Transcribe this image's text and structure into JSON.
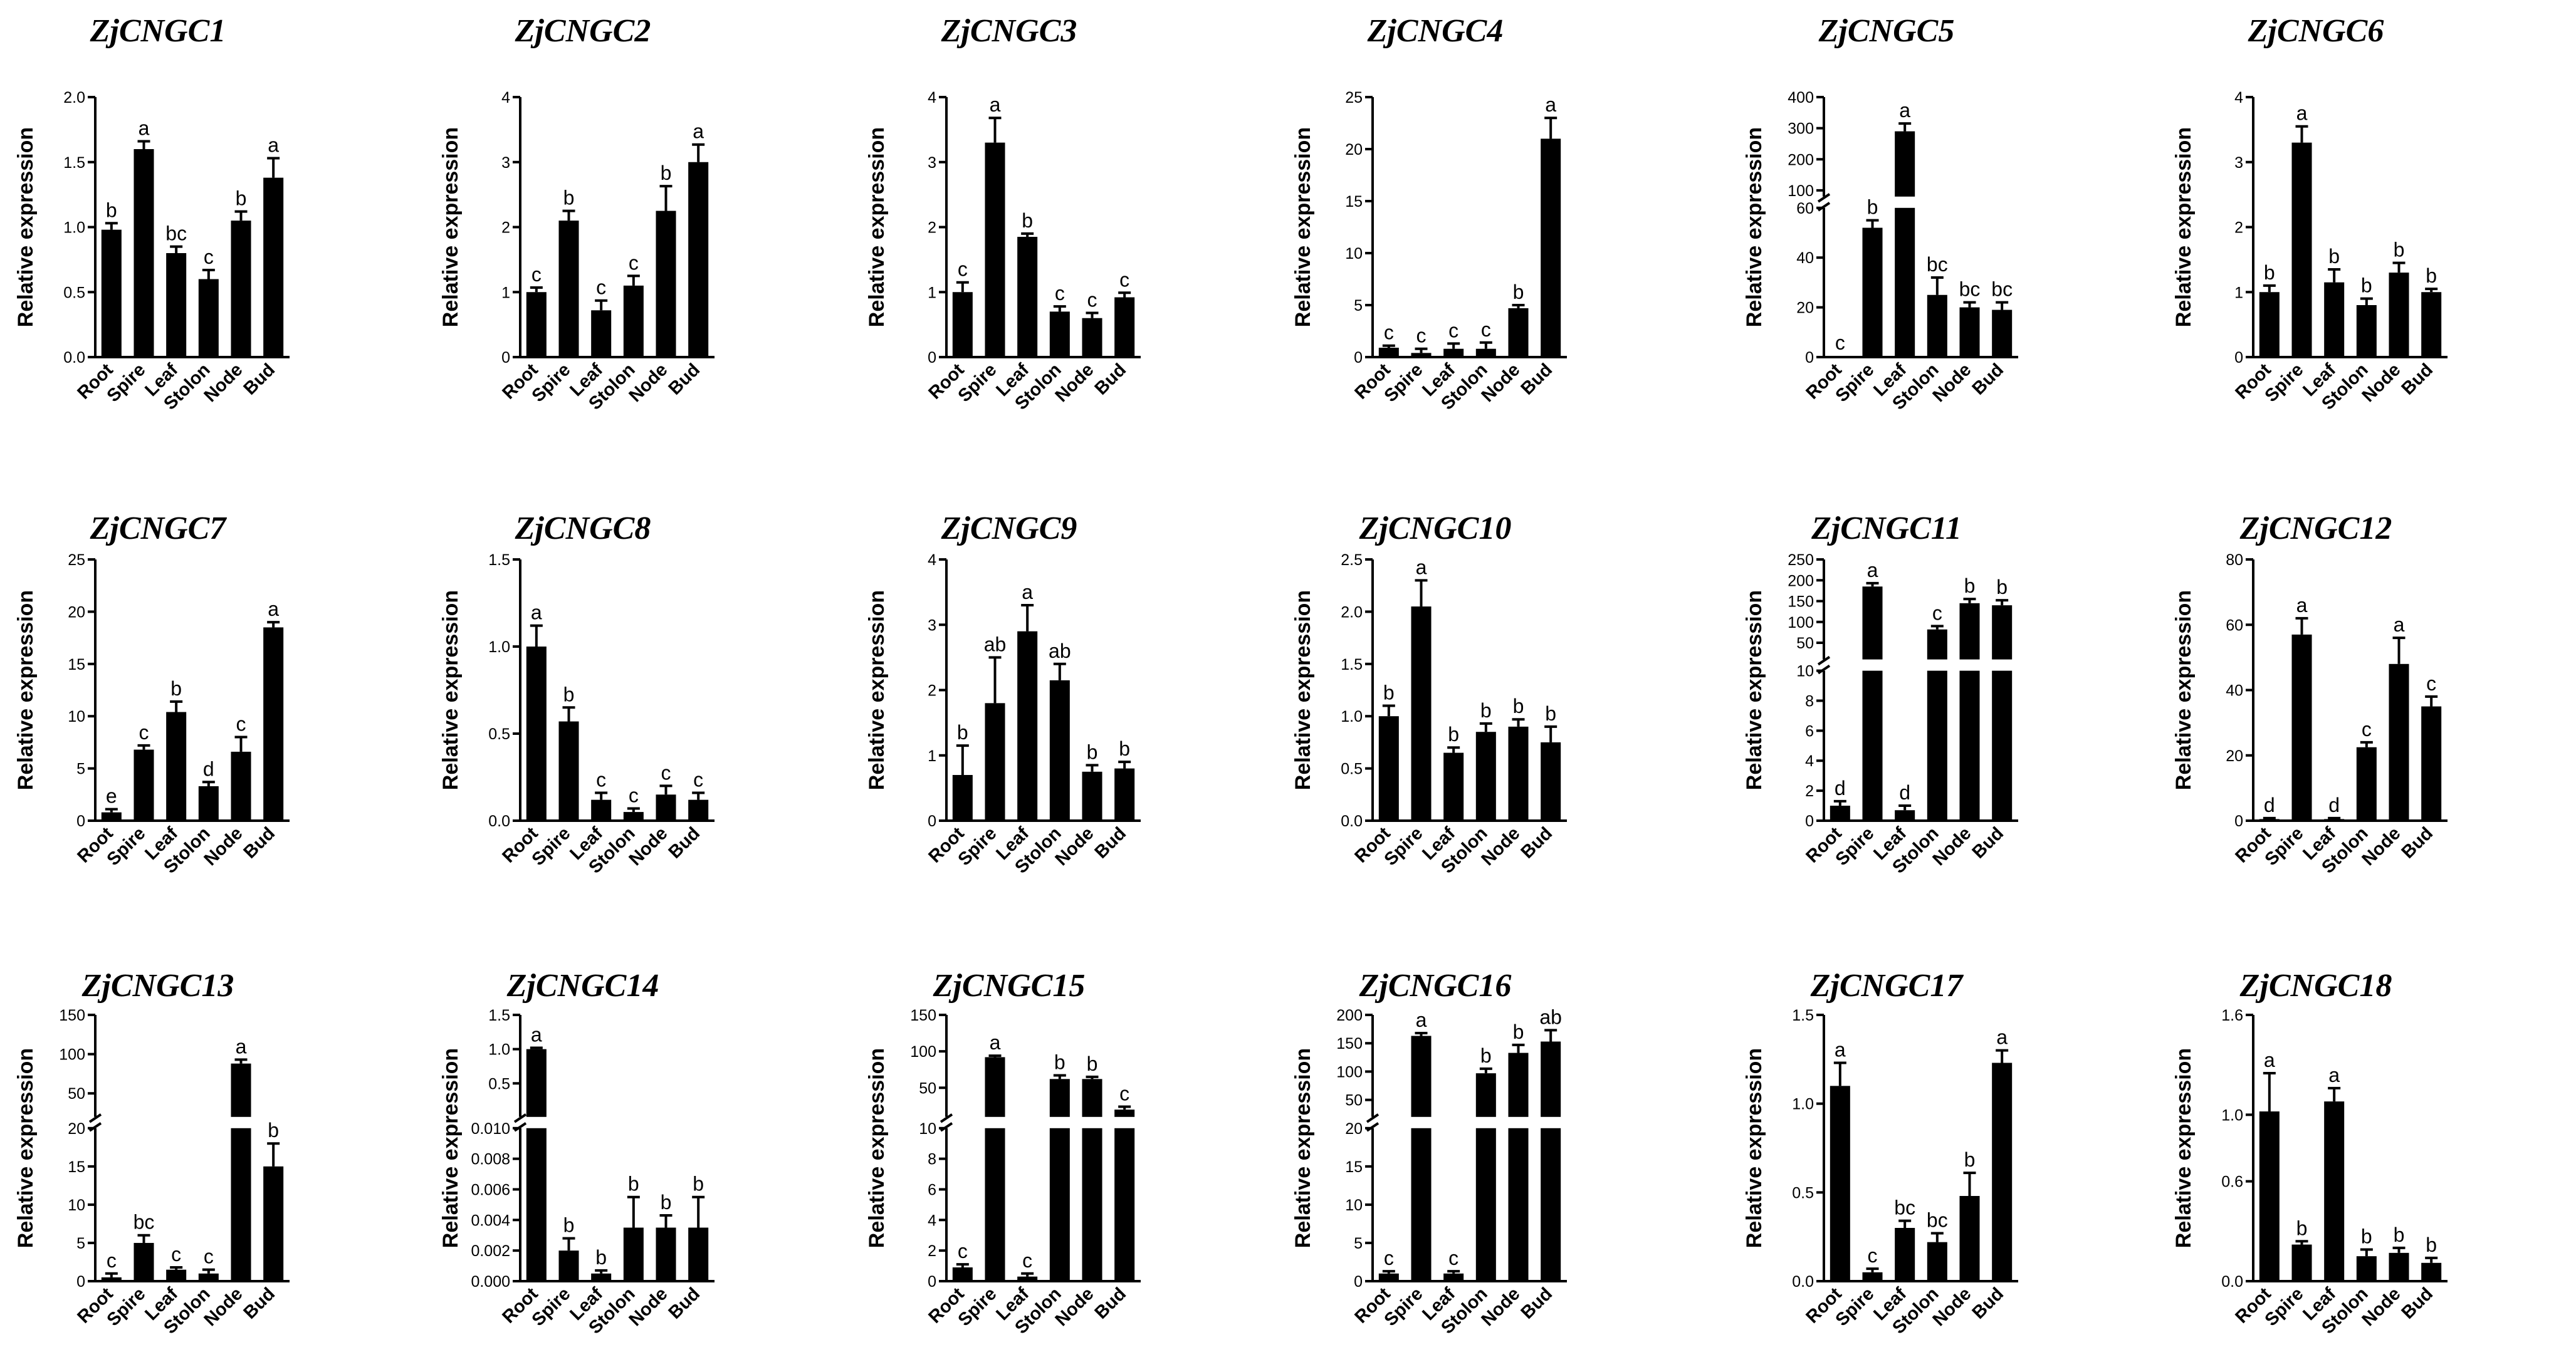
{
  "figure": {
    "ylabel": "Relative expression",
    "categories": [
      "Root",
      "Spire",
      "Leaf",
      "Stolon",
      "Node",
      "Bud"
    ]
  },
  "chart_data": [
    {
      "type": "bar",
      "title": "ZjCNGC1",
      "ylim": [
        0,
        2.0
      ],
      "yticks": [
        0,
        0.5,
        1.0,
        1.5,
        2.0
      ],
      "tick_labels": [
        "0.0",
        "0.5",
        "1.0",
        "1.5",
        "2.0"
      ],
      "values": [
        0.98,
        1.6,
        0.8,
        0.6,
        1.05,
        1.38
      ],
      "errors": [
        0.05,
        0.06,
        0.05,
        0.07,
        0.07,
        0.15
      ],
      "letters": [
        "b",
        "a",
        "bc",
        "c",
        "b",
        "a"
      ]
    },
    {
      "type": "bar",
      "title": "ZjCNGC2",
      "ylim": [
        0,
        4
      ],
      "yticks": [
        0,
        1,
        2,
        3,
        4
      ],
      "tick_labels": [
        "0",
        "1",
        "2",
        "3",
        "4"
      ],
      "values": [
        1.0,
        2.1,
        0.72,
        1.1,
        2.25,
        3.0
      ],
      "errors": [
        0.07,
        0.15,
        0.15,
        0.15,
        0.38,
        0.27
      ],
      "letters": [
        "c",
        "b",
        "c",
        "c",
        "b",
        "a"
      ]
    },
    {
      "type": "bar",
      "title": "ZjCNGC3",
      "ylim": [
        0,
        4
      ],
      "yticks": [
        0,
        1,
        2,
        3,
        4
      ],
      "tick_labels": [
        "0",
        "1",
        "2",
        "3",
        "4"
      ],
      "values": [
        1.0,
        3.3,
        1.85,
        0.7,
        0.6,
        0.92
      ],
      "errors": [
        0.15,
        0.38,
        0.05,
        0.08,
        0.08,
        0.07
      ],
      "letters": [
        "c",
        "a",
        "b",
        "c",
        "c",
        "c"
      ]
    },
    {
      "type": "bar",
      "title": "ZjCNGC4",
      "ylim": [
        0,
        25
      ],
      "yticks": [
        0,
        5,
        10,
        15,
        20,
        25
      ],
      "tick_labels": [
        "0",
        "5",
        "10",
        "15",
        "20",
        "25"
      ],
      "values": [
        0.9,
        0.4,
        0.8,
        0.8,
        4.7,
        21
      ],
      "errors": [
        0.2,
        0.4,
        0.5,
        0.6,
        0.3,
        2.0
      ],
      "letters": [
        "c",
        "c",
        "c",
        "c",
        "b",
        "a"
      ]
    },
    {
      "type": "bar",
      "title": "ZjCNGC5",
      "break": {
        "low": [
          0,
          60
        ],
        "high": [
          80,
          400
        ],
        "ratio": 0.6
      },
      "yticks": [
        0,
        20,
        40,
        60,
        100,
        200,
        300,
        400
      ],
      "tick_labels": [
        "0",
        "20",
        "40",
        "60",
        "100",
        "200",
        "300",
        "400"
      ],
      "values": [
        0.5,
        52,
        290,
        25,
        20,
        19
      ],
      "errors": [
        0,
        3,
        25,
        7,
        2,
        3
      ],
      "letters": [
        "c",
        "b",
        "a",
        "bc",
        "bc",
        "bc"
      ]
    },
    {
      "type": "bar",
      "title": "ZjCNGC6",
      "ylim": [
        0,
        4
      ],
      "yticks": [
        0,
        1,
        2,
        3,
        4
      ],
      "tick_labels": [
        "0",
        "1",
        "2",
        "3",
        "4"
      ],
      "values": [
        1.0,
        3.3,
        1.15,
        0.8,
        1.3,
        1.0
      ],
      "errors": [
        0.1,
        0.25,
        0.2,
        0.1,
        0.15,
        0.05
      ],
      "letters": [
        "b",
        "a",
        "b",
        "b",
        "b",
        "b"
      ]
    },
    {
      "type": "bar",
      "title": "ZjCNGC7",
      "ylim": [
        0,
        25
      ],
      "yticks": [
        0,
        5,
        10,
        15,
        20,
        25
      ],
      "tick_labels": [
        "0",
        "5",
        "10",
        "15",
        "20",
        "25"
      ],
      "values": [
        0.8,
        6.8,
        10.4,
        3.3,
        6.6,
        18.5
      ],
      "errors": [
        0.3,
        0.4,
        1.0,
        0.4,
        1.4,
        0.5
      ],
      "letters": [
        "e",
        "c",
        "b",
        "d",
        "c",
        "a"
      ]
    },
    {
      "type": "bar",
      "title": "ZjCNGC8",
      "ylim": [
        0,
        1.5
      ],
      "yticks": [
        0,
        0.5,
        1.0,
        1.5
      ],
      "tick_labels": [
        "0.0",
        "0.5",
        "1.0",
        "1.5"
      ],
      "values": [
        1.0,
        0.57,
        0.12,
        0.05,
        0.15,
        0.12
      ],
      "errors": [
        0.12,
        0.08,
        0.04,
        0.02,
        0.05,
        0.04
      ],
      "letters": [
        "a",
        "b",
        "c",
        "c",
        "c",
        "c"
      ]
    },
    {
      "type": "bar",
      "title": "ZjCNGC9",
      "ylim": [
        0,
        4
      ],
      "yticks": [
        0,
        1,
        2,
        3,
        4
      ],
      "tick_labels": [
        "0",
        "1",
        "2",
        "3",
        "4"
      ],
      "values": [
        0.7,
        1.8,
        2.9,
        2.15,
        0.75,
        0.8
      ],
      "errors": [
        0.45,
        0.7,
        0.4,
        0.25,
        0.1,
        0.1
      ],
      "letters": [
        "b",
        "ab",
        "a",
        "ab",
        "b",
        "b"
      ]
    },
    {
      "type": "bar",
      "title": "ZjCNGC10",
      "ylim": [
        0,
        2.5
      ],
      "yticks": [
        0,
        0.5,
        1.0,
        1.5,
        2.0,
        2.5
      ],
      "tick_labels": [
        "0.0",
        "0.5",
        "1.0",
        "1.5",
        "2.0",
        "2.5"
      ],
      "values": [
        1.0,
        2.05,
        0.65,
        0.85,
        0.9,
        0.75
      ],
      "errors": [
        0.1,
        0.25,
        0.05,
        0.08,
        0.07,
        0.15
      ],
      "letters": [
        "b",
        "a",
        "b",
        "b",
        "b",
        "b"
      ]
    },
    {
      "type": "bar",
      "title": "ZjCNGC11",
      "break": {
        "low": [
          0,
          10
        ],
        "high": [
          10,
          250
        ],
        "ratio": 0.6
      },
      "yticks": [
        0,
        2,
        4,
        6,
        8,
        10,
        50,
        100,
        150,
        200,
        250
      ],
      "tick_labels": [
        "0",
        "2",
        "4",
        "6",
        "8",
        "10",
        "50",
        "100",
        "150",
        "200",
        "250"
      ],
      "values": [
        1.0,
        185,
        0.7,
        82,
        145,
        140
      ],
      "errors": [
        0.3,
        8,
        0.3,
        8,
        10,
        12
      ],
      "letters": [
        "d",
        "a",
        "d",
        "c",
        "b",
        "b"
      ]
    },
    {
      "type": "bar",
      "title": "ZjCNGC12",
      "ylim": [
        0,
        80
      ],
      "yticks": [
        0,
        20,
        40,
        60,
        80
      ],
      "tick_labels": [
        "0",
        "20",
        "40",
        "60",
        "80"
      ],
      "values": [
        0.5,
        57,
        0.5,
        22.5,
        48,
        35
      ],
      "errors": [
        0.3,
        5,
        0.3,
        1.5,
        8,
        3
      ],
      "letters": [
        "d",
        "a",
        "d",
        "c",
        "a",
        "c"
      ]
    },
    {
      "type": "bar",
      "title": "ZjCNGC13",
      "break": {
        "low": [
          0,
          20
        ],
        "high": [
          20,
          150
        ],
        "ratio": 0.6
      },
      "yticks": [
        0,
        5,
        10,
        15,
        20,
        50,
        100,
        150
      ],
      "tick_labels": [
        "0",
        "5",
        "10",
        "15",
        "20",
        "50",
        "100",
        "150"
      ],
      "values": [
        0.5,
        5,
        1.5,
        1,
        88,
        15
      ],
      "errors": [
        0.5,
        1,
        0.3,
        0.5,
        5,
        3
      ],
      "letters": [
        "c",
        "bc",
        "c",
        "c",
        "a",
        "b"
      ]
    },
    {
      "type": "bar",
      "title": "ZjCNGC14",
      "break": {
        "low": [
          0,
          0.01
        ],
        "high": [
          0.01,
          1.5
        ],
        "ratio": 0.6
      },
      "yticks": [
        0,
        0.002,
        0.004,
        0.006,
        0.008,
        0.01,
        0.5,
        1.0,
        1.5
      ],
      "tick_labels": [
        "0.000",
        "0.002",
        "0.004",
        "0.006",
        "0.008",
        "0.010",
        "0.5",
        "1.0",
        "1.5"
      ],
      "values": [
        1.0,
        0.002,
        0.0005,
        0.0035,
        0.0035,
        0.0035
      ],
      "errors": [
        0.02,
        0.0008,
        0.0002,
        0.002,
        0.0008,
        0.002
      ],
      "letters": [
        "a",
        "b",
        "b",
        "b",
        "b",
        "b"
      ]
    },
    {
      "type": "bar",
      "title": "ZjCNGC15",
      "break": {
        "low": [
          0,
          10
        ],
        "high": [
          10,
          150
        ],
        "ratio": 0.6
      },
      "yticks": [
        0,
        2,
        4,
        6,
        8,
        10,
        50,
        100,
        150
      ],
      "tick_labels": [
        "0",
        "2",
        "4",
        "6",
        "8",
        "10",
        "50",
        "100",
        "150"
      ],
      "values": [
        0.9,
        92,
        0.3,
        62,
        62,
        20
      ],
      "errors": [
        0.2,
        2,
        0.2,
        5,
        3,
        4
      ],
      "letters": [
        "c",
        "a",
        "c",
        "b",
        "b",
        "c"
      ]
    },
    {
      "type": "bar",
      "title": "ZjCNGC16",
      "break": {
        "low": [
          0,
          20
        ],
        "high": [
          20,
          200
        ],
        "ratio": 0.6
      },
      "yticks": [
        0,
        5,
        10,
        15,
        20,
        50,
        100,
        150,
        200
      ],
      "tick_labels": [
        "0",
        "5",
        "10",
        "15",
        "20",
        "50",
        "100",
        "150",
        "200"
      ],
      "values": [
        1.0,
        163,
        1.0,
        97,
        133,
        153
      ],
      "errors": [
        0.3,
        5,
        0.3,
        8,
        14,
        20
      ],
      "letters": [
        "c",
        "a",
        "c",
        "b",
        "b",
        "ab"
      ]
    },
    {
      "type": "bar",
      "title": "ZjCNGC17",
      "ylim": [
        0,
        1.5
      ],
      "yticks": [
        0,
        0.5,
        1.0,
        1.5
      ],
      "tick_labels": [
        "0.0",
        "0.5",
        "1.0",
        "1.5"
      ],
      "values": [
        1.1,
        0.05,
        0.3,
        0.22,
        0.48,
        1.23
      ],
      "errors": [
        0.13,
        0.02,
        0.04,
        0.05,
        0.13,
        0.07
      ],
      "letters": [
        "a",
        "c",
        "bc",
        "bc",
        "b",
        "a"
      ]
    },
    {
      "type": "bar",
      "title": "ZjCNGC18",
      "ylim": [
        0,
        1.6
      ],
      "yticks": [
        0,
        0.6,
        1.0,
        1.6
      ],
      "tick_labels": [
        "0.0",
        "0.6",
        "1.0",
        "1.6"
      ],
      "values": [
        1.02,
        0.22,
        1.08,
        0.15,
        0.17,
        0.11
      ],
      "errors": [
        0.23,
        0.02,
        0.08,
        0.04,
        0.03,
        0.03
      ],
      "letters": [
        "a",
        "b",
        "a",
        "b",
        "b",
        "b"
      ]
    }
  ]
}
